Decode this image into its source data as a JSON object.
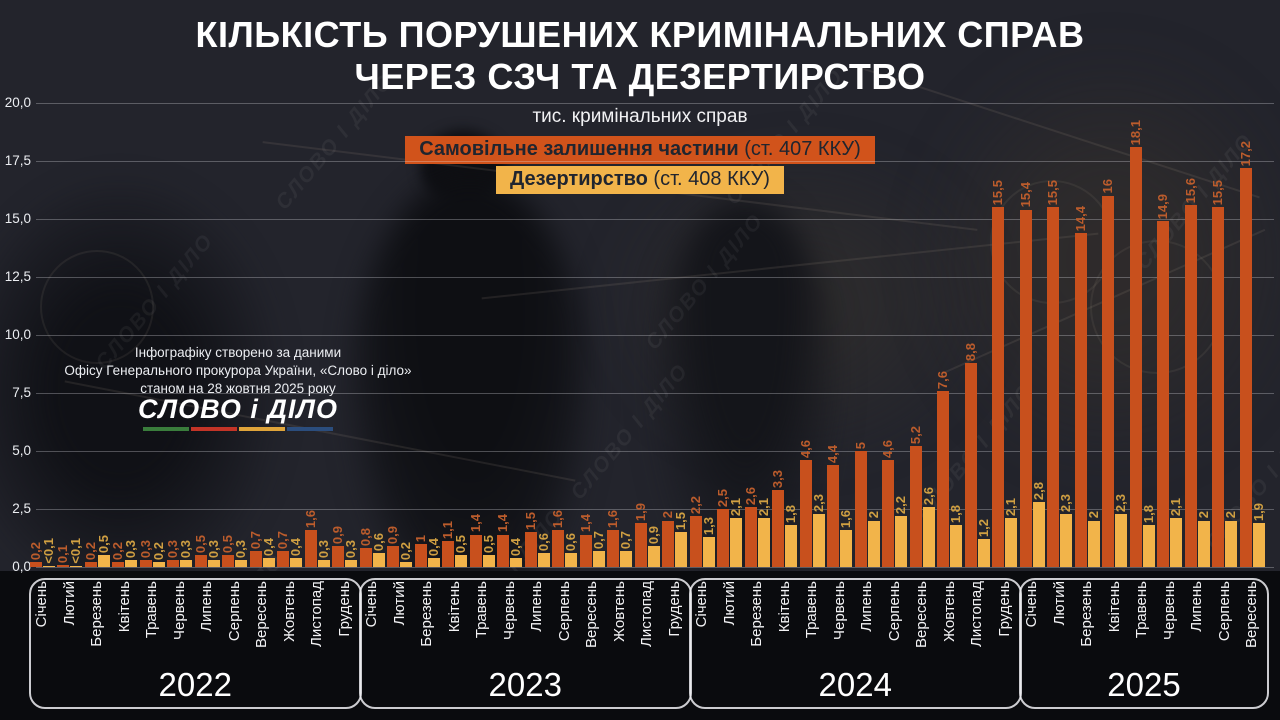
{
  "title": {
    "line1": "КІЛЬКІСТЬ ПОРУШЕНИХ КРИМІНАЛЬНИХ СПРАВ",
    "line2": "ЧЕРЕЗ СЗЧ ТА ДЕЗЕРТИРСТВО"
  },
  "subtitle": "тис. кримінальних справ",
  "legend": {
    "szch": {
      "bold": "Самовільне залишення частини",
      "rest": " (ст. 407 ККУ)",
      "bg": "#d1531b"
    },
    "desertion": {
      "bold": "Дезертирство",
      "rest": " (ст. 408 ККУ)",
      "bg": "#f2b44a"
    }
  },
  "source_note": {
    "line1": "Інфографіку створено за даними",
    "line2": "Офісу Генерального прокурора України, «Слово і діло»",
    "line3": "станом на 28 жовтня 2025 року"
  },
  "logo": {
    "text": "СЛОВО і ДІЛО",
    "underline_colors": [
      "#3a7d3c",
      "#c33427",
      "#dfa43a",
      "#2b4d7d"
    ]
  },
  "watermark": "СЛОВО І ДІЛО",
  "chart_data": {
    "type": "bar",
    "title": "КІЛЬКІСТЬ ПОРУШЕНИХ КРИМІНАЛЬНИХ СПРАВ ЧЕРЕЗ СЗЧ ТА ДЕЗЕРТИРСТВО",
    "ylabel": "тис. кримінальних справ",
    "ylim": [
      0,
      20
    ],
    "ytick_step": 2.5,
    "ytick_labels": [
      "20,0",
      "17,5",
      "15,0",
      "12,5",
      "10,0",
      "7,5",
      "5,0",
      "2,5",
      "0,0"
    ],
    "grid": true,
    "legend_position": "top",
    "series_meta": {
      "szch": {
        "name": "Самовільне залишення частини (ст. 407 ККУ)",
        "color": "#c8501d",
        "label_color": "#bb5c2c"
      },
      "desertion": {
        "name": "Дезертирство (ст. 408 ККУ)",
        "color": "#f2b44a",
        "label_color": "#cf9f42"
      }
    },
    "years": [
      {
        "year": "2022",
        "months": [
          "Січень",
          "Лютий",
          "Березень",
          "Квітень",
          "Травень",
          "Червень",
          "Липень",
          "Серпень",
          "Вересень",
          "Жовтень",
          "Листопад",
          "Грудень"
        ],
        "szch": [
          0.2,
          0.1,
          0.2,
          0.2,
          0.3,
          0.3,
          0.5,
          0.5,
          0.7,
          0.7,
          1.6,
          0.9
        ],
        "szch_labels": [
          "0,2",
          "0,1",
          "0,2",
          "0,2",
          "0,3",
          "0,3",
          "0,5",
          "0,5",
          "0,7",
          "0,7",
          "1,6",
          "0,9"
        ],
        "desertion": [
          0.05,
          0.05,
          0.5,
          0.3,
          0.2,
          0.3,
          0.3,
          0.3,
          0.4,
          0.4,
          0.3,
          0.3
        ],
        "desertion_labels": [
          "<0,1",
          "<0,1",
          "0,5",
          "0,3",
          "0,2",
          "0,3",
          "0,3",
          "0,3",
          "0,4",
          "0,4",
          "0,3",
          "0,3"
        ]
      },
      {
        "year": "2023",
        "months": [
          "Січень",
          "Лютий",
          "Березень",
          "Квітень",
          "Травень",
          "Червень",
          "Липень",
          "Серпень",
          "Вересень",
          "Жовтень",
          "Листопад",
          "Грудень"
        ],
        "szch": [
          0.8,
          0.9,
          1.0,
          1.1,
          1.4,
          1.4,
          1.5,
          1.6,
          1.4,
          1.6,
          1.9,
          2.0
        ],
        "szch_labels": [
          "0,8",
          "0,9",
          "1",
          "1,1",
          "1,4",
          "1,4",
          "1,5",
          "1,6",
          "1,4",
          "1,6",
          "1,9",
          "2"
        ],
        "desertion": [
          0.6,
          0.2,
          0.4,
          0.5,
          0.5,
          0.4,
          0.6,
          0.6,
          0.7,
          0.7,
          0.9,
          1.5
        ],
        "desertion_labels": [
          "0,6",
          "0,2",
          "0,4",
          "0,5",
          "0,5",
          "0,4",
          "0,6",
          "0,6",
          "0,7",
          "0,7",
          "0,9",
          "1,5"
        ]
      },
      {
        "year": "2024",
        "months": [
          "Січень",
          "Лютий",
          "Березень",
          "Квітень",
          "Травень",
          "Червень",
          "Липень",
          "Серпень",
          "Вересень",
          "Жовтень",
          "Листопад",
          "Грудень"
        ],
        "szch": [
          2.2,
          2.5,
          2.6,
          3.3,
          4.6,
          4.4,
          5.0,
          4.6,
          5.2,
          7.6,
          8.8,
          15.5
        ],
        "szch_labels": [
          "2,2",
          "2,5",
          "2,6",
          "3,3",
          "4,6",
          "4,4",
          "5",
          "4,6",
          "5,2",
          "7,6",
          "8,8",
          "15,5"
        ],
        "desertion": [
          1.3,
          2.1,
          2.1,
          1.8,
          2.3,
          1.6,
          2.0,
          2.2,
          2.6,
          1.8,
          1.2,
          2.1
        ],
        "desertion_labels": [
          "1,3",
          "2,1",
          "2,1",
          "1,8",
          "2,3",
          "1,6",
          "2",
          "2,2",
          "2,6",
          "1,8",
          "1,2",
          "2,1"
        ]
      },
      {
        "year": "2025",
        "months": [
          "Січень",
          "Лютий",
          "Березень",
          "Квітень",
          "Травень",
          "Червень",
          "Липень",
          "Серпень",
          "Вересень"
        ],
        "szch": [
          15.4,
          15.5,
          14.4,
          16.0,
          18.1,
          14.9,
          15.6,
          15.5,
          17.2
        ],
        "szch_labels": [
          "15,4",
          "15,5",
          "14,4",
          "16",
          "18,1",
          "14,9",
          "15,6",
          "15,5",
          "17,2"
        ],
        "desertion": [
          2.8,
          2.3,
          2.0,
          2.3,
          1.8,
          2.1,
          2.0,
          2.0,
          1.9
        ],
        "desertion_labels": [
          "2,8",
          "2,3",
          "2",
          "2,3",
          "1,8",
          "2,1",
          "2",
          "2",
          "1,9"
        ]
      }
    ]
  }
}
